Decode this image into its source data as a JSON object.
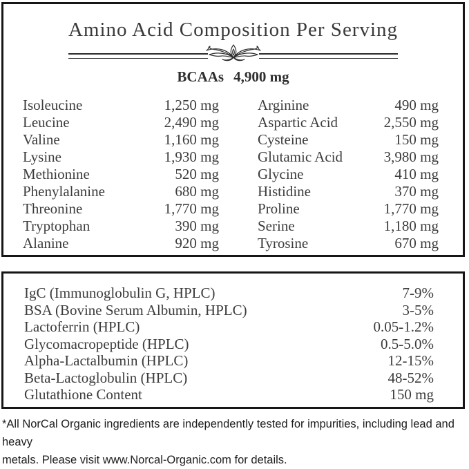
{
  "amino_panel": {
    "title": "Amino Acid Composition Per Serving",
    "bcaa_label": "BCAAs",
    "bcaa_value": "4,900 mg",
    "left_column": [
      {
        "name": "Isoleucine",
        "value": "1,250 mg"
      },
      {
        "name": "Leucine",
        "value": "2,490 mg"
      },
      {
        "name": "Valine",
        "value": "1,160 mg"
      },
      {
        "name": "Lysine",
        "value": "1,930 mg"
      },
      {
        "name": "Methionine",
        "value": "520 mg"
      },
      {
        "name": "Phenylalanine",
        "value": "680 mg"
      },
      {
        "name": "Threonine",
        "value": "1,770 mg"
      },
      {
        "name": "Tryptophan",
        "value": "390 mg"
      },
      {
        "name": "Alanine",
        "value": "920 mg"
      }
    ],
    "right_column": [
      {
        "name": "Arginine",
        "value": "490 mg"
      },
      {
        "name": "Aspartic Acid",
        "value": "2,550 mg"
      },
      {
        "name": "Cysteine",
        "value": "150 mg"
      },
      {
        "name": "Glutamic Acid",
        "value": "3,980 mg"
      },
      {
        "name": "Glycine",
        "value": "410 mg"
      },
      {
        "name": "Histidine",
        "value": "370 mg"
      },
      {
        "name": "Proline",
        "value": "1,770 mg"
      },
      {
        "name": "Serine",
        "value": "1,180 mg"
      },
      {
        "name": "Tyrosine",
        "value": "670 mg"
      }
    ]
  },
  "fraction_panel": {
    "rows": [
      {
        "name": "IgC (Immunoglobulin G, HPLC)",
        "value": "7-9%"
      },
      {
        "name": "BSA (Bovine Serum Albumin, HPLC)",
        "value": "3-5%"
      },
      {
        "name": "Lactoferrin (HPLC)",
        "value": "0.05-1.2%"
      },
      {
        "name": "Glycomacropeptide (HPLC)",
        "value": "0.5-5.0%"
      },
      {
        "name": "Alpha-Lactalbumin (HPLC)",
        "value": "12-15%"
      },
      {
        "name": "Beta-Lactoglobulin (HPLC)",
        "value": "48-52%"
      },
      {
        "name": "Glutathione Content",
        "value": "150 mg"
      }
    ]
  },
  "footnote": {
    "line1": "*All NorCal Organic ingredients are independently tested for impurities, including lead and heavy",
    "line2": "metals. Please visit www.Norcal-Organic.com for details."
  },
  "colors": {
    "border": "#161616",
    "serif_text": "#3c3c3c",
    "footnote_text": "#1d1d1d"
  }
}
